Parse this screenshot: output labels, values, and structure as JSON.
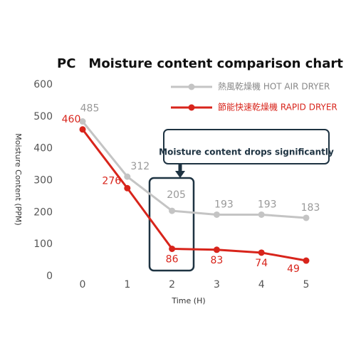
{
  "chart_data": {
    "type": "line",
    "title": "PC　Moisture content comparison chart",
    "x_label": "Time (H)",
    "y_label": "Moisture Content (PPM)",
    "categories": [
      "0",
      "1",
      "2",
      "3",
      "4",
      "5"
    ],
    "series": [
      {
        "name": "熱風乾燥機 HOT AIR DRYER",
        "color": "#c4c4c4",
        "values": [
          485,
          312,
          205,
          193,
          193,
          183
        ]
      },
      {
        "name": "節能快速乾燥機 RAPID DRYER",
        "color": "#d8241b",
        "values": [
          460,
          276,
          86,
          83,
          74,
          49
        ]
      }
    ],
    "ylim": [
      0,
      600
    ],
    "yticks": [
      0,
      100,
      200,
      300,
      400,
      500,
      600
    ],
    "grid": false,
    "legend": "upper right",
    "annotation": "Moisture content drops significantly"
  }
}
